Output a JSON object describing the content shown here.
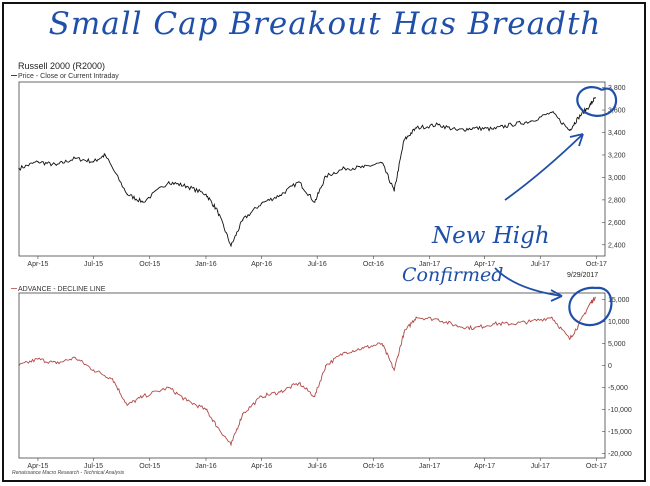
{
  "annotations": {
    "headline": "Small Cap Breakout Has Breadth",
    "new_high": "New High",
    "confirmed": "Confirmed"
  },
  "chart_data": [
    {
      "type": "line",
      "title": "Russell 2000 (R2000)",
      "legend": "Price - Close or Current Intraday",
      "x_ticks": [
        "Apr-15",
        "Jul-15",
        "Oct-15",
        "Jan-16",
        "Apr-16",
        "Jul-16",
        "Oct-16",
        "Jan-17",
        "Apr-17",
        "Jul-17",
        "Oct-17"
      ],
      "y_ticks": [
        2400,
        2600,
        2800,
        3000,
        3200,
        3400,
        3600,
        3800
      ],
      "ylim": [
        2300,
        3850
      ],
      "xlim": [
        "2015-03-01",
        "2017-10-15"
      ],
      "x": [
        "2015-03-01",
        "2015-04-01",
        "2015-05-01",
        "2015-06-01",
        "2015-07-01",
        "2015-07-20",
        "2015-08-25",
        "2015-09-20",
        "2015-11-01",
        "2015-12-01",
        "2016-01-01",
        "2016-01-20",
        "2016-02-11",
        "2016-03-01",
        "2016-04-01",
        "2016-05-01",
        "2016-06-01",
        "2016-06-27",
        "2016-07-15",
        "2016-08-15",
        "2016-09-15",
        "2016-10-15",
        "2016-11-04",
        "2016-11-20",
        "2016-12-10",
        "2017-01-15",
        "2017-02-15",
        "2017-03-15",
        "2017-04-15",
        "2017-05-15",
        "2017-06-15",
        "2017-07-20",
        "2017-08-18",
        "2017-09-01",
        "2017-09-20",
        "2017-09-29"
      ],
      "values": [
        3080,
        3140,
        3110,
        3170,
        3140,
        3200,
        2850,
        2780,
        2960,
        2920,
        2850,
        2700,
        2390,
        2620,
        2770,
        2840,
        2960,
        2780,
        3010,
        3080,
        3090,
        3130,
        2880,
        3330,
        3440,
        3470,
        3420,
        3440,
        3430,
        3470,
        3500,
        3580,
        3420,
        3530,
        3640,
        3710
      ]
    },
    {
      "type": "line",
      "title": "ADVANCE - DECLINE LINE",
      "x_ticks": [
        "Apr-15",
        "Jul-15",
        "Oct-15",
        "Jan-16",
        "Apr-16",
        "Jul-16",
        "Oct-16",
        "Jan-17",
        "Apr-17",
        "Jul-17",
        "Oct-17"
      ],
      "y_ticks": [
        -20000,
        -15000,
        -10000,
        -5000,
        0,
        5000,
        10000,
        15000
      ],
      "ylim": [
        -21000,
        16500
      ],
      "xlim": [
        "2015-03-01",
        "2017-10-15"
      ],
      "date_label": "9/29/2017",
      "source": "Renaissance Macro Research - Technical Analysis",
      "x": [
        "2015-03-01",
        "2015-04-01",
        "2015-05-01",
        "2015-06-01",
        "2015-07-01",
        "2015-08-01",
        "2015-08-25",
        "2015-09-20",
        "2015-11-01",
        "2015-12-01",
        "2016-01-01",
        "2016-01-20",
        "2016-02-11",
        "2016-03-01",
        "2016-04-01",
        "2016-05-01",
        "2016-06-01",
        "2016-06-27",
        "2016-07-15",
        "2016-08-15",
        "2016-09-15",
        "2016-10-15",
        "2016-11-04",
        "2016-11-20",
        "2016-12-10",
        "2017-01-15",
        "2017-02-15",
        "2017-03-15",
        "2017-04-15",
        "2017-05-15",
        "2017-06-15",
        "2017-07-20",
        "2017-08-18",
        "2017-09-01",
        "2017-09-20",
        "2017-09-29"
      ],
      "values": [
        0,
        1500,
        500,
        1800,
        -1000,
        -3000,
        -9000,
        -7000,
        -5000,
        -8000,
        -10000,
        -14000,
        -18000,
        -11000,
        -7000,
        -6000,
        -4000,
        -7000,
        0,
        3000,
        4000,
        5000,
        -1000,
        7500,
        11000,
        10500,
        9000,
        8500,
        9500,
        9500,
        10000,
        11000,
        6000,
        9000,
        14000,
        15500
      ]
    }
  ]
}
